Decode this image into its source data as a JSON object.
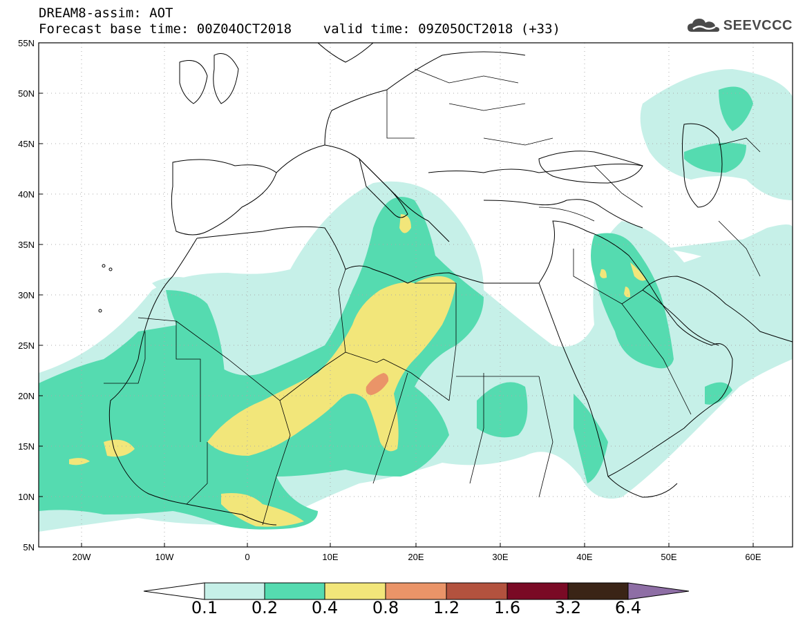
{
  "header": {
    "line1": "DREAM8-assim: AOT",
    "line2": "Forecast base time: 00Z04OCT2018    valid time: 09Z05OCT2018 (+33)",
    "logo_text": "SEEVCCC"
  },
  "map": {
    "lat_labels": [
      "55N",
      "50N",
      "45N",
      "40N",
      "35N",
      "30N",
      "25N",
      "20N",
      "15N",
      "10N",
      "5N"
    ],
    "lon_labels": [
      "20W",
      "10W",
      "0",
      "10E",
      "20E",
      "30E",
      "40E",
      "50E",
      "60E"
    ]
  },
  "legend": {
    "labels": [
      "0.1",
      "0.2",
      "0.4",
      "0.8",
      "1.2",
      "1.6",
      "3.2",
      "6.4"
    ],
    "colors": [
      "#ffffff",
      "#c6f0e8",
      "#55dbb0",
      "#f2e67a",
      "#ea9468",
      "#b3523e",
      "#7a0a25",
      "#3a2416",
      "#8e6ea5"
    ]
  }
}
